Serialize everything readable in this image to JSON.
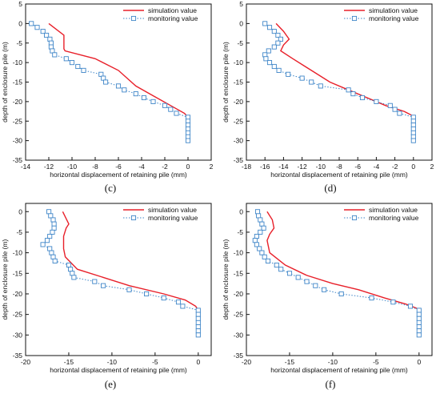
{
  "chart_data": [
    {
      "type": "line",
      "caption": "(c)",
      "xlabel": "horizontal displacement of retaining pile (mm)",
      "ylabel": "depth of enclosure pile (m)",
      "xlim": [
        -14,
        2
      ],
      "ylim": [
        -35,
        5
      ],
      "xticks": [
        -14,
        -12,
        -10,
        -8,
        -6,
        -4,
        -2,
        0,
        2
      ],
      "yticks": [
        5,
        0,
        -5,
        -10,
        -15,
        -20,
        -25,
        -30,
        -35
      ],
      "legend_position": "top-right",
      "grid": false,
      "series": [
        {
          "name": "simulation value",
          "style": "solid-red",
          "points": [
            [
              -12,
              0
            ],
            [
              -10.7,
              -3
            ],
            [
              -10.7,
              -4
            ],
            [
              -10.7,
              -6.5
            ],
            [
              -10.6,
              -7
            ],
            [
              -8,
              -9
            ],
            [
              -6,
              -12
            ],
            [
              -4.5,
              -16
            ],
            [
              -3,
              -18.5
            ],
            [
              -1.5,
              -21
            ],
            [
              -0.3,
              -23
            ],
            [
              0,
              -24
            ],
            [
              0,
              -30
            ]
          ]
        },
        {
          "name": "monitoring value",
          "style": "dotted-square-blue",
          "points": [
            [
              -13.5,
              0
            ],
            [
              -13,
              -1
            ],
            [
              -12.5,
              -2
            ],
            [
              -12.2,
              -3
            ],
            [
              -11.9,
              -4
            ],
            [
              -11.8,
              -5
            ],
            [
              -11.8,
              -6
            ],
            [
              -11.7,
              -7
            ],
            [
              -11.5,
              -8
            ],
            [
              -10.5,
              -9
            ],
            [
              -10,
              -10
            ],
            [
              -9.5,
              -11
            ],
            [
              -9,
              -12
            ],
            [
              -7.5,
              -13
            ],
            [
              -7.3,
              -14
            ],
            [
              -7.1,
              -15
            ],
            [
              -6,
              -16
            ],
            [
              -5.5,
              -17
            ],
            [
              -4.5,
              -18
            ],
            [
              -3.8,
              -19
            ],
            [
              -3,
              -20
            ],
            [
              -2,
              -21
            ],
            [
              -1.5,
              -22
            ],
            [
              -1,
              -23
            ],
            [
              0,
              -24
            ],
            [
              0,
              -25
            ],
            [
              0,
              -26
            ],
            [
              0,
              -27
            ],
            [
              0,
              -28
            ],
            [
              0,
              -29
            ],
            [
              0,
              -30
            ]
          ]
        }
      ]
    },
    {
      "type": "line",
      "caption": "(d)",
      "xlabel": "horizontal displacement of retaining pile (mm)",
      "ylabel": "depth of enclosure pile (m)",
      "xlim": [
        -18,
        2
      ],
      "ylim": [
        -35,
        5
      ],
      "xticks": [
        -18,
        -16,
        -14,
        -12,
        -10,
        -8,
        -6,
        -4,
        -2,
        0,
        2
      ],
      "yticks": [
        5,
        0,
        -5,
        -10,
        -15,
        -20,
        -25,
        -30,
        -35
      ],
      "legend_position": "top-right",
      "grid": false,
      "series": [
        {
          "name": "simulation value",
          "style": "solid-red",
          "points": [
            [
              -14.8,
              0
            ],
            [
              -14,
              -2
            ],
            [
              -13.4,
              -4
            ],
            [
              -14,
              -5.5
            ],
            [
              -14.3,
              -7
            ],
            [
              -13,
              -9
            ],
            [
              -11,
              -12
            ],
            [
              -9,
              -15
            ],
            [
              -7,
              -17
            ],
            [
              -5,
              -19
            ],
            [
              -3,
              -21
            ],
            [
              -1,
              -22.5
            ],
            [
              -0.2,
              -23.5
            ],
            [
              0,
              -24
            ],
            [
              0,
              -30
            ]
          ]
        },
        {
          "name": "monitoring value",
          "style": "dotted-square-blue",
          "points": [
            [
              -16,
              0
            ],
            [
              -15.5,
              -1
            ],
            [
              -15,
              -2
            ],
            [
              -14.6,
              -3
            ],
            [
              -14.3,
              -4
            ],
            [
              -14.6,
              -5
            ],
            [
              -15,
              -6
            ],
            [
              -15.6,
              -7
            ],
            [
              -16,
              -8
            ],
            [
              -15.9,
              -9
            ],
            [
              -15.5,
              -10
            ],
            [
              -15,
              -11
            ],
            [
              -14.5,
              -12
            ],
            [
              -13.5,
              -13
            ],
            [
              -12,
              -14
            ],
            [
              -11,
              -15
            ],
            [
              -10,
              -16
            ],
            [
              -7,
              -17
            ],
            [
              -6.5,
              -18
            ],
            [
              -5.5,
              -19
            ],
            [
              -4,
              -20
            ],
            [
              -2.5,
              -21
            ],
            [
              -2,
              -22
            ],
            [
              -1.5,
              -23
            ],
            [
              0,
              -24
            ],
            [
              0,
              -25
            ],
            [
              0,
              -26
            ],
            [
              0,
              -27
            ],
            [
              0,
              -28
            ],
            [
              0,
              -29
            ],
            [
              0,
              -30
            ]
          ]
        }
      ]
    },
    {
      "type": "line",
      "caption": "(e)",
      "xlabel": "horizontal displacement of retaining pile (mm)",
      "ylabel": "depth of enclosure pile (m)",
      "xlim": [
        -20,
        1.5
      ],
      "ylim": [
        -35,
        2
      ],
      "xticks": [
        -20,
        -15,
        -10,
        -5,
        0
      ],
      "yticks": [
        0,
        -5,
        -10,
        -15,
        -20,
        -25,
        -30,
        -35
      ],
      "legend_position": "top-right",
      "grid": false,
      "series": [
        {
          "name": "simulation value",
          "style": "solid-red",
          "points": [
            [
              -15.7,
              0
            ],
            [
              -15,
              -3
            ],
            [
              -15.3,
              -4
            ],
            [
              -15.6,
              -6
            ],
            [
              -15.6,
              -9
            ],
            [
              -15.4,
              -11
            ],
            [
              -14,
              -14
            ],
            [
              -11,
              -16
            ],
            [
              -8,
              -18
            ],
            [
              -4,
              -20
            ],
            [
              -1.5,
              -21.5
            ],
            [
              -0.3,
              -23
            ],
            [
              0,
              -24
            ],
            [
              0,
              -30
            ]
          ]
        },
        {
          "name": "monitoring value",
          "style": "dotted-square-blue",
          "points": [
            [
              -17.3,
              0
            ],
            [
              -17.1,
              -1
            ],
            [
              -16.8,
              -2
            ],
            [
              -16.7,
              -3
            ],
            [
              -16.7,
              -4
            ],
            [
              -16.9,
              -5
            ],
            [
              -17.2,
              -6
            ],
            [
              -17.5,
              -7
            ],
            [
              -18,
              -8
            ],
            [
              -17.2,
              -9
            ],
            [
              -17,
              -10
            ],
            [
              -16.8,
              -11
            ],
            [
              -16.6,
              -12
            ],
            [
              -15,
              -13
            ],
            [
              -14.8,
              -14
            ],
            [
              -14.6,
              -15
            ],
            [
              -14.4,
              -16
            ],
            [
              -12,
              -17
            ],
            [
              -11,
              -18
            ],
            [
              -8,
              -19
            ],
            [
              -6,
              -20
            ],
            [
              -4,
              -21
            ],
            [
              -2.3,
              -22
            ],
            [
              -1.8,
              -23
            ],
            [
              0,
              -24
            ],
            [
              0,
              -25
            ],
            [
              0,
              -26
            ],
            [
              0,
              -27
            ],
            [
              0,
              -28
            ],
            [
              0,
              -29
            ],
            [
              0,
              -30
            ]
          ]
        }
      ]
    },
    {
      "type": "line",
      "caption": "(f)",
      "xlabel": "horizontal displacement of retaining pile (mm)",
      "ylabel": "depth of enclosure pile (m)",
      "xlim": [
        -20,
        1.5
      ],
      "ylim": [
        -35,
        2
      ],
      "xticks": [
        -20,
        -15,
        -10,
        -5,
        0
      ],
      "yticks": [
        0,
        -5,
        -10,
        -15,
        -20,
        -25,
        -30,
        -35
      ],
      "legend_position": "top-right",
      "grid": false,
      "series": [
        {
          "name": "simulation value",
          "style": "solid-red",
          "points": [
            [
              -17.6,
              0
            ],
            [
              -17,
              -2
            ],
            [
              -16.8,
              -4
            ],
            [
              -17.3,
              -5.5
            ],
            [
              -17.6,
              -7
            ],
            [
              -17.3,
              -10
            ],
            [
              -15.5,
              -13
            ],
            [
              -13,
              -15.5
            ],
            [
              -10,
              -17.5
            ],
            [
              -7,
              -19
            ],
            [
              -4,
              -21
            ],
            [
              -1.5,
              -22.5
            ],
            [
              -0.3,
              -23.5
            ],
            [
              0,
              -24
            ],
            [
              0,
              -30
            ]
          ]
        },
        {
          "name": "monitoring value",
          "style": "dotted-square-blue",
          "points": [
            [
              -18.7,
              0
            ],
            [
              -18.6,
              -1
            ],
            [
              -18.4,
              -2
            ],
            [
              -18.2,
              -3
            ],
            [
              -18,
              -4
            ],
            [
              -18.4,
              -5
            ],
            [
              -18.8,
              -6
            ],
            [
              -19,
              -7
            ],
            [
              -18.8,
              -8
            ],
            [
              -18.5,
              -9
            ],
            [
              -18.2,
              -10
            ],
            [
              -17.9,
              -11
            ],
            [
              -17.5,
              -12
            ],
            [
              -16.5,
              -13
            ],
            [
              -16,
              -14
            ],
            [
              -15,
              -15
            ],
            [
              -14,
              -16
            ],
            [
              -13,
              -17
            ],
            [
              -12,
              -18
            ],
            [
              -11,
              -19
            ],
            [
              -9,
              -20
            ],
            [
              -5.5,
              -21
            ],
            [
              -3,
              -22
            ],
            [
              -1,
              -23
            ],
            [
              0,
              -24
            ],
            [
              0,
              -25
            ],
            [
              0,
              -26
            ],
            [
              0,
              -27
            ],
            [
              0,
              -28
            ],
            [
              0,
              -29
            ],
            [
              0,
              -30
            ]
          ]
        }
      ]
    }
  ],
  "colors": {
    "simulation": "#e8202a",
    "monitoring": "#3f86c8",
    "axis": "#111111"
  }
}
